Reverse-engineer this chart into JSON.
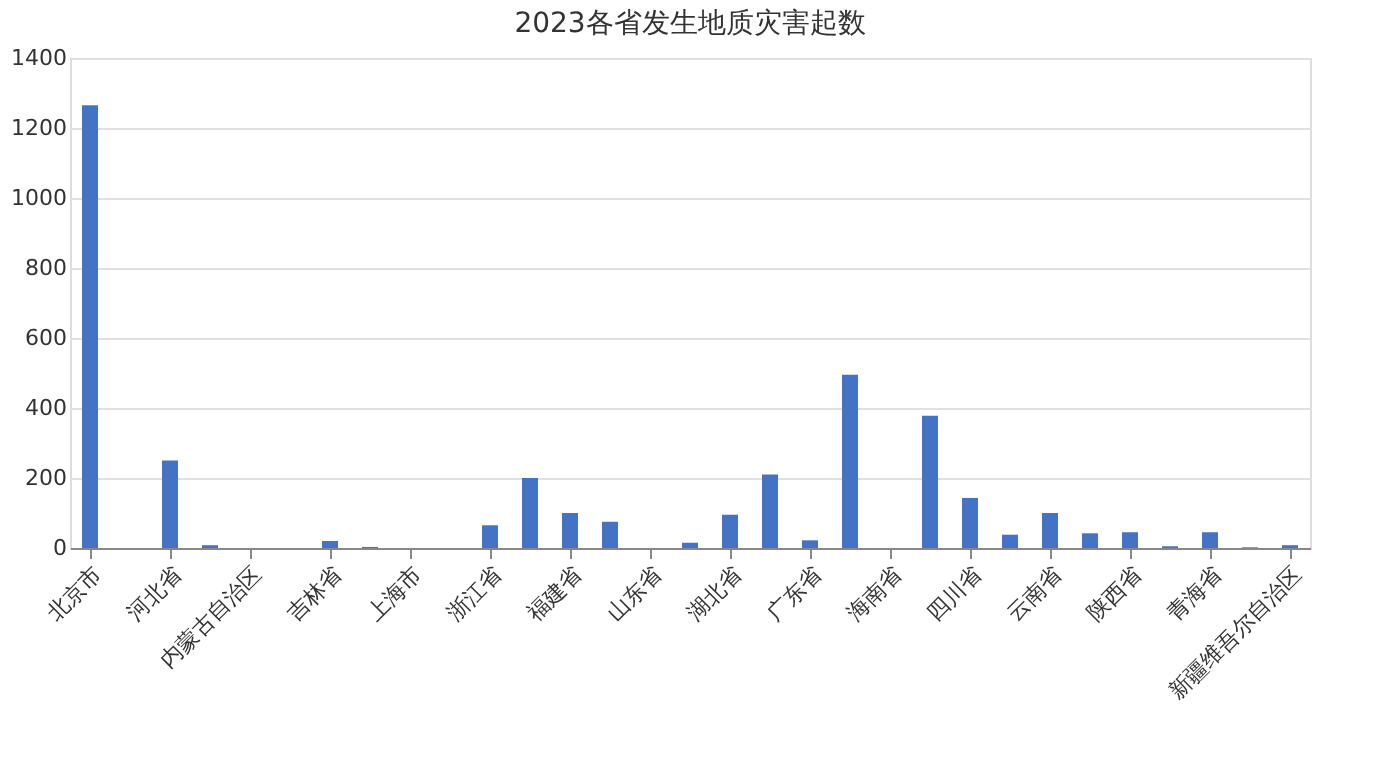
{
  "chart_data": {
    "type": "bar",
    "title": "2023各省发生地质灾害起数",
    "categories": [
      "北京市",
      null,
      "河北省",
      null,
      "内蒙古自治区",
      null,
      "吉林省",
      null,
      "上海市",
      null,
      "浙江省",
      null,
      "福建省",
      null,
      "山东省",
      null,
      "湖北省",
      null,
      "广东省",
      null,
      "海南省",
      null,
      "四川省",
      null,
      "云南省",
      null,
      "陕西省",
      null,
      "青海省",
      null,
      "新疆维吾尔自治区"
    ],
    "values": [
      1265,
      0,
      250,
      8,
      0,
      0,
      20,
      3,
      0,
      0,
      65,
      200,
      100,
      75,
      0,
      15,
      95,
      210,
      22,
      495,
      0,
      378,
      143,
      38,
      100,
      42,
      45,
      5,
      45,
      2,
      8
    ],
    "color": "#4472c4",
    "ylim": [
      0,
      1400
    ],
    "yticks": [
      0,
      200,
      400,
      600,
      800,
      1000,
      1200,
      1400
    ],
    "grid": "y"
  }
}
